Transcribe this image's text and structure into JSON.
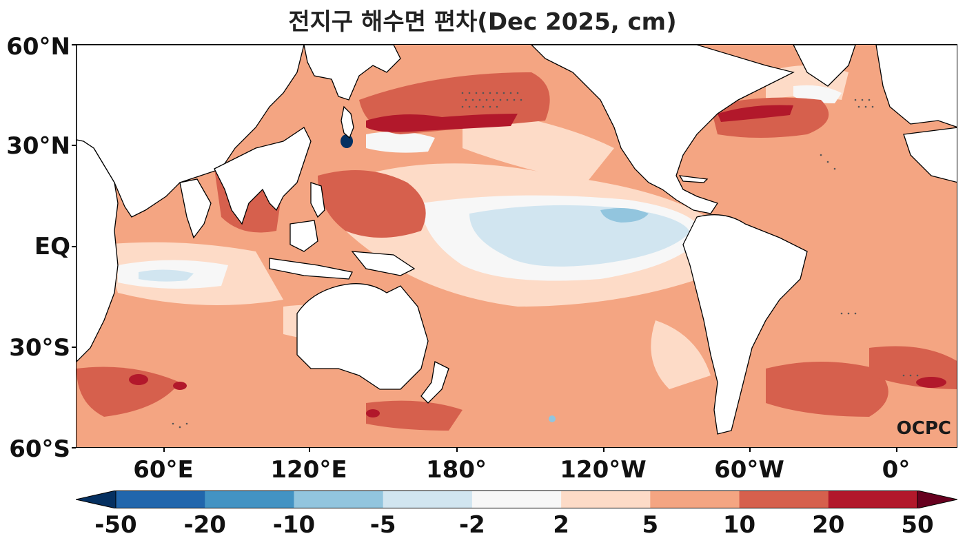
{
  "title": "전지구 해수면 편차(Dec 2025, cm)",
  "watermark": "OCPC",
  "y_axis": {
    "labels": [
      "60°N",
      "30°N",
      "EQ",
      "30°S",
      "60°S"
    ]
  },
  "x_axis": {
    "labels": [
      "60°E",
      "120°E",
      "180°",
      "120°W",
      "60°W",
      "0°"
    ]
  },
  "colorbar": {
    "labels": [
      "-50",
      "-20",
      "-10",
      "-5",
      "-2",
      "2",
      "5",
      "10",
      "20",
      "50"
    ],
    "colors": [
      "#053061",
      "#2166ac",
      "#4393c3",
      "#92c5de",
      "#d1e5f0",
      "#f7f7f7",
      "#fddbc7",
      "#f4a582",
      "#d6604d",
      "#b2182b",
      "#67001f"
    ]
  },
  "field_colors": {
    "land": "#ffffff",
    "coast": "#000000",
    "stipple": "#555555"
  }
}
